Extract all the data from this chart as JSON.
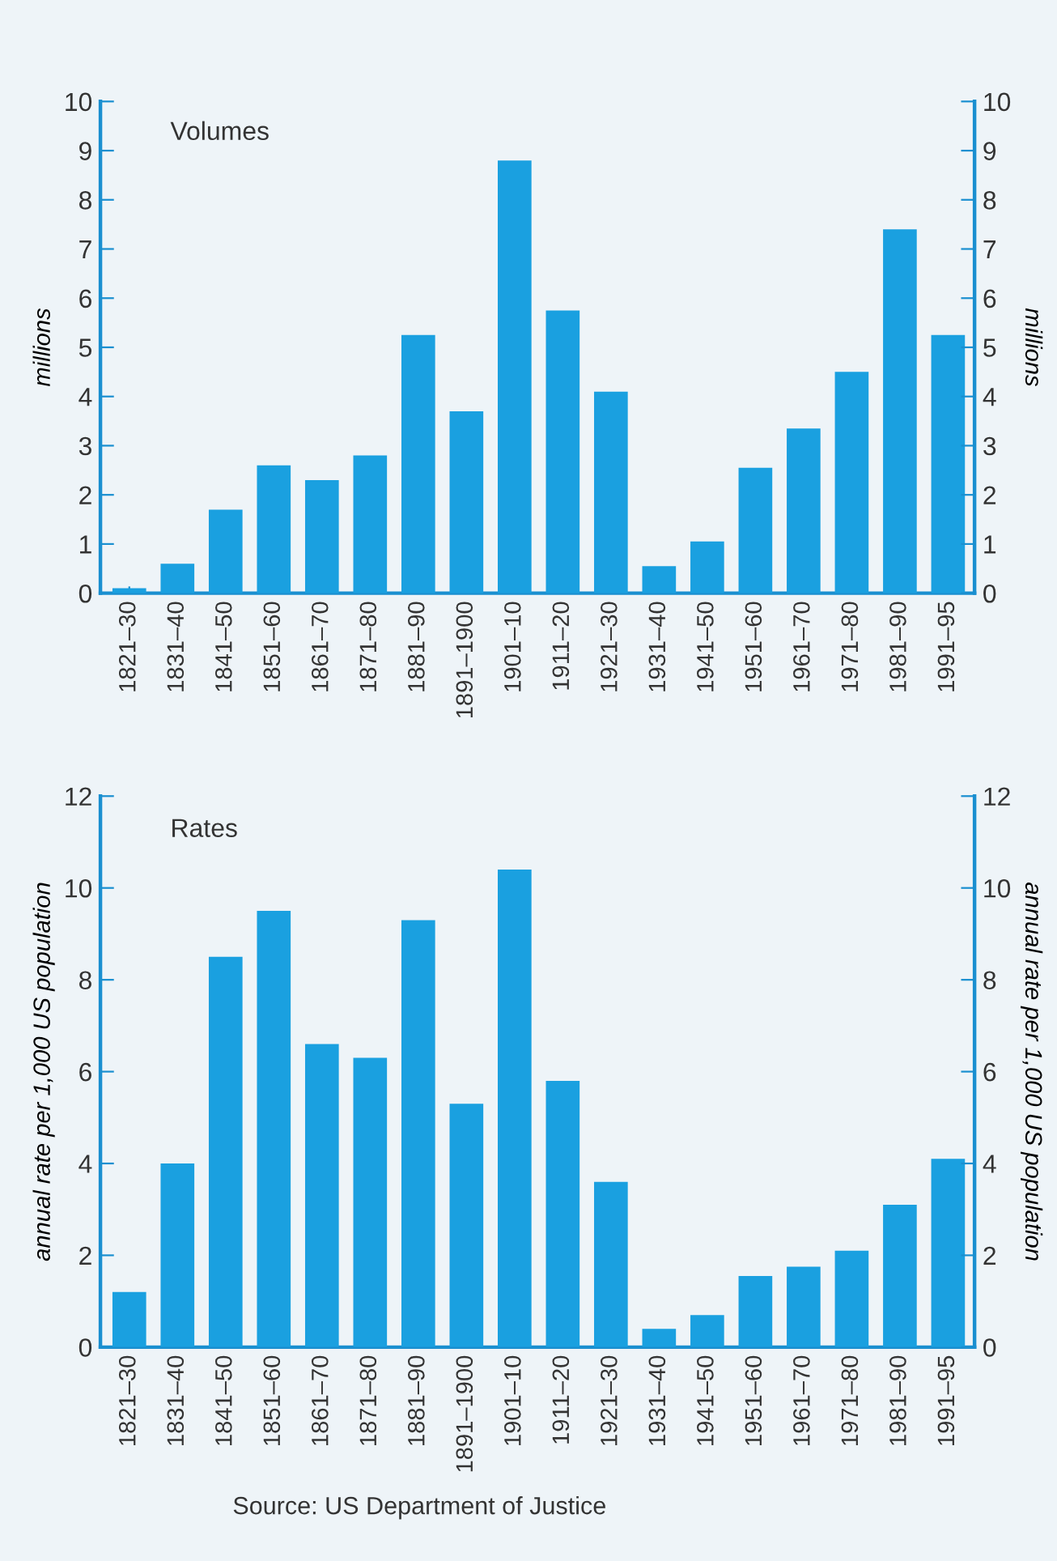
{
  "chart_data": [
    {
      "type": "bar",
      "title": "Volumes",
      "ylabel": "millions",
      "y2label": "millions",
      "categories": [
        "1821–30",
        "1831–40",
        "1841–50",
        "1851–60",
        "1861–70",
        "1871–80",
        "1881–90",
        "1891–1900",
        "1901–10",
        "1911–20",
        "1921–30",
        "1931–40",
        "1941–50",
        "1951–60",
        "1961–70",
        "1971–80",
        "1981–90",
        "1991–95"
      ],
      "values": [
        0.1,
        0.6,
        1.7,
        2.6,
        2.3,
        2.8,
        5.25,
        3.7,
        8.8,
        5.75,
        4.1,
        0.55,
        1.05,
        2.55,
        3.35,
        4.5,
        7.4,
        5.25
      ],
      "color": "#1aa0e0",
      "ylim": [
        0,
        10
      ],
      "yticks": [
        0,
        1,
        2,
        3,
        4,
        5,
        6,
        7,
        8,
        9,
        10
      ],
      "y2lim": [
        0,
        10
      ],
      "y2ticks": [
        0,
        1,
        2,
        3,
        4,
        5,
        6,
        7,
        8,
        9,
        10
      ],
      "grid": false,
      "legend": false
    },
    {
      "type": "bar",
      "title": "Rates",
      "ylabel": "annual rate per 1,000 US population",
      "y2label": "annual rate per 1,000 US population",
      "categories": [
        "1821–30",
        "1831–40",
        "1841–50",
        "1851–60",
        "1861–70",
        "1871–80",
        "1881–90",
        "1891–1900",
        "1901–10",
        "1911–20",
        "1921–30",
        "1931–40",
        "1941–50",
        "1951–60",
        "1961–70",
        "1971–80",
        "1981–90",
        "1991–95"
      ],
      "values": [
        1.2,
        4.0,
        8.5,
        9.5,
        6.6,
        6.3,
        9.3,
        5.3,
        10.4,
        5.8,
        3.6,
        0.4,
        0.7,
        1.55,
        1.75,
        2.1,
        3.1,
        4.1
      ],
      "color": "#1aa0e0",
      "ylim": [
        0,
        12
      ],
      "yticks": [
        0,
        2,
        4,
        6,
        8,
        10,
        12
      ],
      "y2lim": [
        0,
        12
      ],
      "y2ticks": [
        0,
        2,
        4,
        6,
        8,
        10,
        12
      ],
      "grid": false,
      "legend": false,
      "annotations": [
        "Source: US Department of Justice"
      ]
    }
  ]
}
